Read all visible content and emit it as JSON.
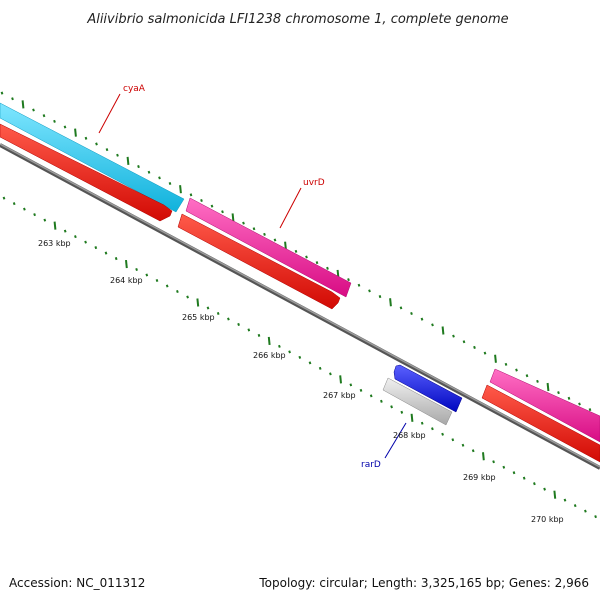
{
  "title": "Aliivibrio salmonicida LFI1238 chromosome 1, complete genome",
  "footer": {
    "accession": "Accession: NC_011312",
    "summary": "Topology: circular; Length: 3,325,165 bp; Genes: 2,966"
  },
  "kbp_labels": [
    "263 kbp",
    "264 kbp",
    "265 kbp",
    "266 kbp",
    "267 kbp",
    "268 kbp",
    "269 kbp",
    "270 kbp"
  ],
  "gene_labels": {
    "cyaA": "cyaA",
    "uvrD": "uvrD",
    "rarD": "rarD"
  },
  "colors": {
    "cyan_feature": "#1ec8ee",
    "magenta_feature": "#f2189a",
    "red_feature": "#f2140e",
    "blue_feature": "#0a10e8",
    "grey_feature": "#c4c4c4",
    "backbone": "#777777",
    "tick_green": "#1f7a1f",
    "label_red": "#cc0000",
    "label_blue": "#0000aa"
  }
}
